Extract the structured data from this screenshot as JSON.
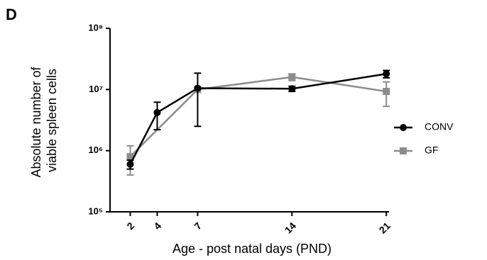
{
  "chart_data": {
    "type": "line",
    "panel_label": "D",
    "ylabel": [
      "Absolute number of",
      "viable spleen cells"
    ],
    "xlabel": "Age - post natal days (PND)",
    "xlim": [
      0.5,
      21.2
    ],
    "xticks": [
      2,
      4,
      7,
      14,
      21
    ],
    "ylim": [
      100000,
      100000000
    ],
    "ylog": true,
    "yticks": [
      {
        "value": 100000,
        "label": "10⁵"
      },
      {
        "value": 1000000,
        "label": "10⁶"
      },
      {
        "value": 10000000,
        "label": "10⁷"
      },
      {
        "value": 100000000,
        "label": "10⁸"
      }
    ],
    "legend": "right",
    "series": [
      {
        "name": "CONV",
        "color": "#000000",
        "marker": "circle",
        "x": [
          2,
          4,
          7,
          14,
          21
        ],
        "values": [
          600000,
          4200000,
          10500000,
          10300000,
          18000000
        ],
        "errors": [
          100000,
          2000000,
          8000000,
          1000000,
          2500000
        ]
      },
      {
        "name": "GF",
        "color": "#8c8c8c",
        "marker": "square",
        "x": [
          2,
          7,
          14,
          21
        ],
        "values": [
          800000,
          10000000,
          16000000,
          9300000
        ],
        "errors": [
          400000,
          1000000,
          2000000,
          4000000
        ]
      }
    ]
  }
}
